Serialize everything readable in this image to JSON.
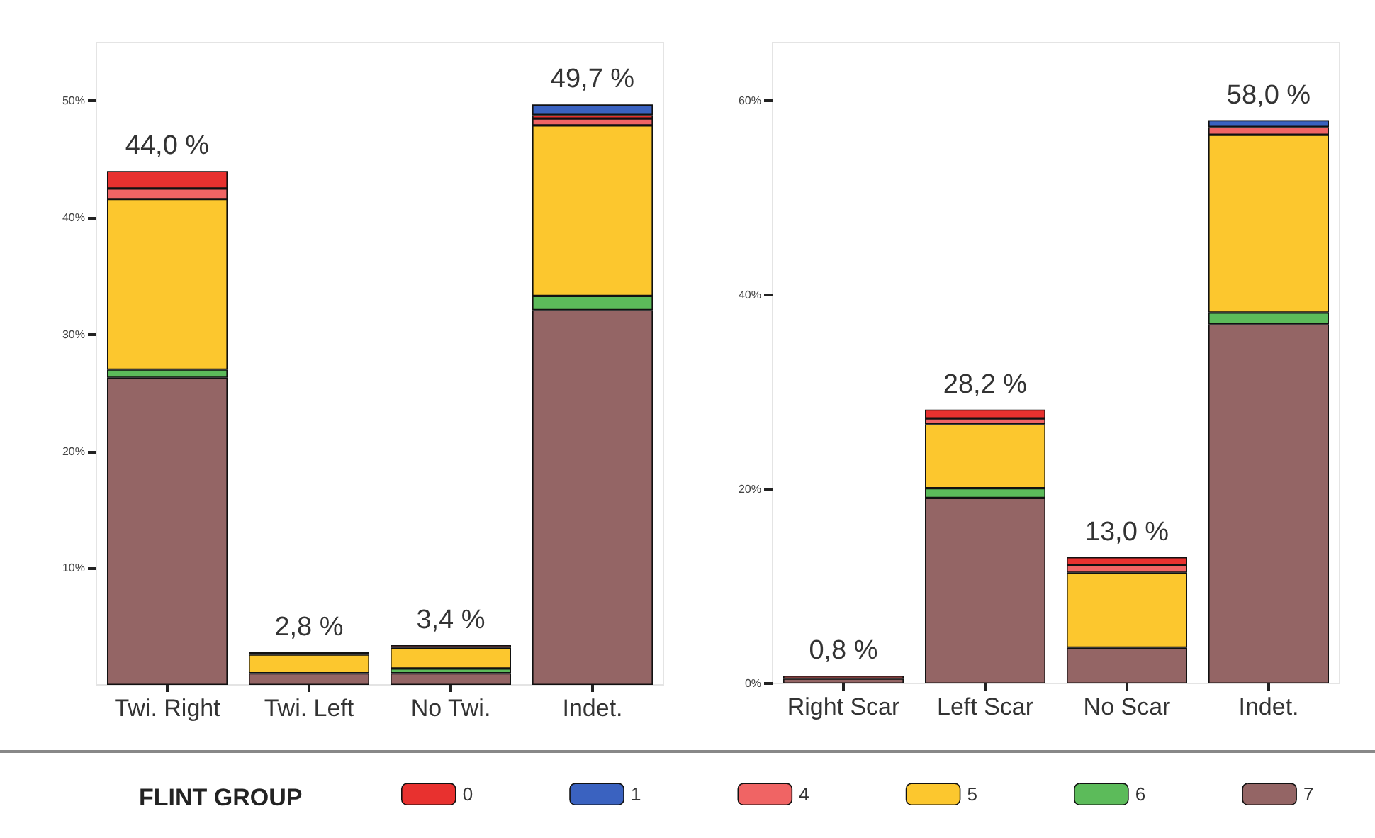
{
  "chart_data": [
    {
      "type": "bar",
      "stacked": true,
      "categories": [
        "Twi. Right",
        "Twi. Left",
        "No Twi.",
        "Indet."
      ],
      "ylim": [
        0,
        55
      ],
      "yticks": [
        {
          "value": 10,
          "label": "10%"
        },
        {
          "value": 20,
          "label": "20%"
        },
        {
          "value": 30,
          "label": "30%"
        },
        {
          "value": 40,
          "label": "40%"
        },
        {
          "value": 50,
          "label": "50%"
        }
      ],
      "grid": false,
      "legend": "bottom",
      "legend_title": "FLINT GROUP",
      "totals": [
        "44,0 %",
        "2,8 %",
        "3,4 %",
        "49,7 %"
      ],
      "series": [
        {
          "name": "7",
          "color": "#946565",
          "values": [
            26.3,
            1.0,
            1.0,
            32.1
          ]
        },
        {
          "name": "6",
          "color": "#5cbb5a",
          "values": [
            0.7,
            null,
            0.4,
            1.2
          ]
        },
        {
          "name": "5",
          "color": "#fcc72e",
          "values": [
            14.6,
            1.6,
            1.8,
            14.6
          ]
        },
        {
          "name": "4",
          "color": "#f06464",
          "values": [
            0.9,
            0.2,
            0.2,
            0.6
          ]
        },
        {
          "name": "0",
          "color": "#e8312f",
          "values": [
            1.5,
            null,
            null,
            0.3
          ]
        },
        {
          "name": "1",
          "color": "#3a62c0",
          "values": [
            null,
            null,
            null,
            0.9
          ]
        }
      ]
    },
    {
      "type": "bar",
      "stacked": true,
      "categories": [
        "Right Scar",
        "Left Scar",
        "No Scar",
        "Indet."
      ],
      "ylim": [
        0,
        66
      ],
      "yticks": [
        {
          "value": 0,
          "label": "0%"
        },
        {
          "value": 20,
          "label": "20%"
        },
        {
          "value": 40,
          "label": "40%"
        },
        {
          "value": 60,
          "label": "60%"
        }
      ],
      "grid": false,
      "totals": [
        "0,8 %",
        "28,2 %",
        "13,0 %",
        "58,0 %"
      ],
      "series": [
        {
          "name": "7",
          "color": "#946565",
          "values": [
            0.5,
            19.1,
            3.7,
            37.0
          ]
        },
        {
          "name": "6",
          "color": "#5cbb5a",
          "values": [
            null,
            1.0,
            null,
            1.2
          ]
        },
        {
          "name": "5",
          "color": "#fcc72e",
          "values": [
            null,
            6.6,
            7.7,
            18.3
          ]
        },
        {
          "name": "4",
          "color": "#f06464",
          "values": [
            0.3,
            0.6,
            0.8,
            0.8
          ]
        },
        {
          "name": "0",
          "color": "#e8312f",
          "values": [
            null,
            0.9,
            0.8,
            null
          ]
        },
        {
          "name": "1",
          "color": "#3a62c0",
          "values": [
            null,
            null,
            null,
            0.7
          ]
        }
      ]
    }
  ]
}
